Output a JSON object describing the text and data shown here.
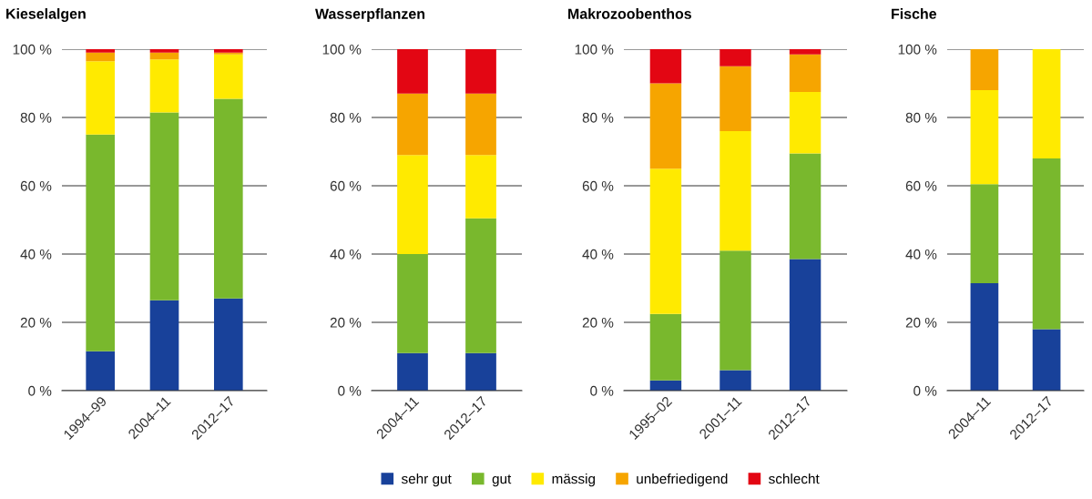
{
  "chart_data": [
    {
      "type": "bar",
      "title": "Kieselalgen",
      "stacked": true,
      "categories": [
        "1994–99",
        "2004–11",
        "2012–17"
      ],
      "ylim": [
        0,
        100
      ],
      "yticks": [
        {
          "value": 0,
          "label": "0 %"
        },
        {
          "value": 20,
          "label": "20 %"
        },
        {
          "value": 40,
          "label": "40 %"
        },
        {
          "value": 60,
          "label": "60 %"
        },
        {
          "value": 80,
          "label": "80 %"
        },
        {
          "value": 100,
          "label": "100 %"
        }
      ],
      "grid": "y",
      "legend": "bottom",
      "series": [
        {
          "name": "sehr gut",
          "color": "#18419a",
          "values": [
            11.5,
            26.5,
            27
          ]
        },
        {
          "name": "gut",
          "color": "#79b82d",
          "values": [
            63.5,
            55,
            58.5
          ]
        },
        {
          "name": "mässig",
          "color": "#ffea00",
          "values": [
            21.5,
            15.5,
            13
          ]
        },
        {
          "name": "unbefriedigend",
          "color": "#f6a500",
          "values": [
            2.5,
            2,
            0.5
          ]
        },
        {
          "name": "schlecht",
          "color": "#e30613",
          "values": [
            1,
            1,
            1
          ]
        }
      ]
    },
    {
      "type": "bar",
      "title": "Wasserpflanzen",
      "stacked": true,
      "categories": [
        "2004–11",
        "2012–17"
      ],
      "ylim": [
        0,
        100
      ],
      "yticks": [
        {
          "value": 0,
          "label": "0 %"
        },
        {
          "value": 20,
          "label": "20 %"
        },
        {
          "value": 40,
          "label": "40 %"
        },
        {
          "value": 60,
          "label": "60 %"
        },
        {
          "value": 80,
          "label": "80 %"
        },
        {
          "value": 100,
          "label": "100 %"
        }
      ],
      "grid": "y",
      "series": [
        {
          "color": "#18419a",
          "values": [
            11,
            11
          ]
        },
        {
          "color": "#79b82d",
          "values": [
            29,
            39.5
          ]
        },
        {
          "color": "#ffea00",
          "values": [
            29,
            18.5
          ]
        },
        {
          "color": "#f6a500",
          "values": [
            18,
            18
          ]
        },
        {
          "color": "#e30613",
          "values": [
            13,
            13
          ]
        }
      ]
    },
    {
      "type": "bar",
      "title": "Makrozoobenthos",
      "stacked": true,
      "categories": [
        "1995–02",
        "2001–11",
        "2012–17"
      ],
      "ylim": [
        0,
        100
      ],
      "yticks": [
        {
          "value": 0,
          "label": "0 %"
        },
        {
          "value": 20,
          "label": "20 %"
        },
        {
          "value": 40,
          "label": "40 %"
        },
        {
          "value": 60,
          "label": "60 %"
        },
        {
          "value": 80,
          "label": "80 %"
        },
        {
          "value": 100,
          "label": "100 %"
        }
      ],
      "grid": "y",
      "series": [
        {
          "color": "#18419a",
          "values": [
            3,
            6,
            38.5
          ]
        },
        {
          "color": "#79b82d",
          "values": [
            19.5,
            35,
            31
          ]
        },
        {
          "color": "#ffea00",
          "values": [
            42.5,
            35,
            18
          ]
        },
        {
          "color": "#f6a500",
          "values": [
            25,
            19,
            11
          ]
        },
        {
          "color": "#e30613",
          "values": [
            10,
            5,
            1.5
          ]
        }
      ]
    },
    {
      "type": "bar",
      "title": "Fische",
      "stacked": true,
      "categories": [
        "2004–11",
        "2012–17"
      ],
      "ylim": [
        0,
        100
      ],
      "yticks": [
        {
          "value": 0,
          "label": "0 %"
        },
        {
          "value": 20,
          "label": "20 %"
        },
        {
          "value": 40,
          "label": "40 %"
        },
        {
          "value": 60,
          "label": "60 %"
        },
        {
          "value": 80,
          "label": "80 %"
        },
        {
          "value": 100,
          "label": "100 %"
        }
      ],
      "grid": "y",
      "series": [
        {
          "color": "#18419a",
          "values": [
            31.5,
            18
          ]
        },
        {
          "color": "#79b82d",
          "values": [
            29,
            50
          ]
        },
        {
          "color": "#ffea00",
          "values": [
            27.5,
            32
          ]
        },
        {
          "color": "#f6a500",
          "values": [
            12,
            null
          ]
        },
        {
          "color": "#e30613",
          "values": [
            null,
            null
          ]
        }
      ]
    }
  ]
}
